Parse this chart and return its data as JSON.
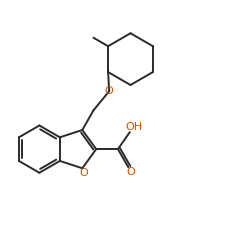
{
  "bg_color": "#ffffff",
  "line_color": "#2a2a2a",
  "O_color": "#cc5500",
  "lw": 1.4,
  "figsize": [
    2.25,
    2.42
  ],
  "dpi": 100,
  "xlim": [
    0.0,
    1.0
  ],
  "ylim": [
    0.0,
    1.0
  ]
}
